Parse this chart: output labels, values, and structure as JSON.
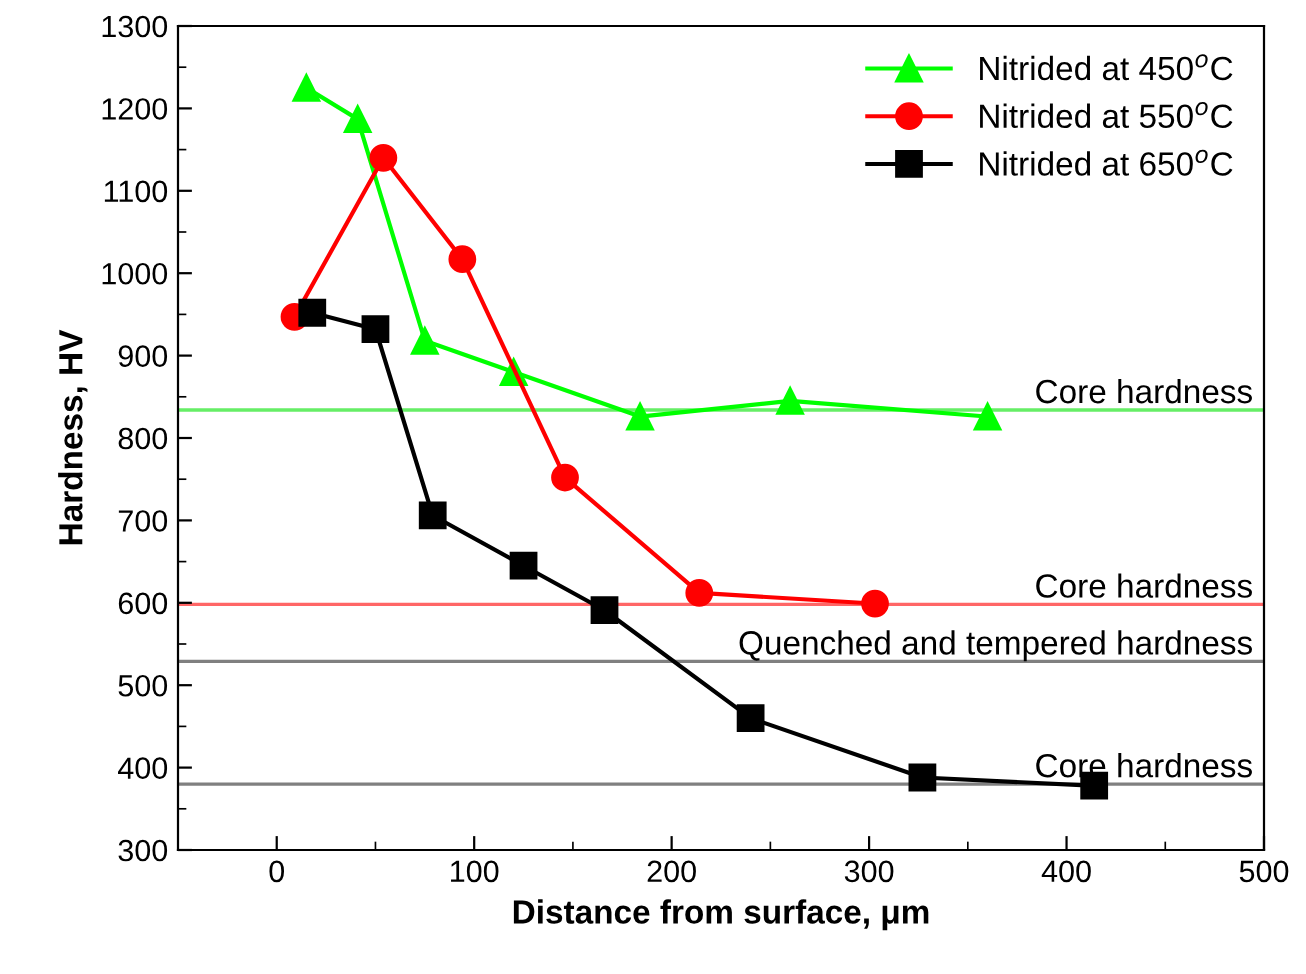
{
  "chart_data": {
    "type": "line",
    "xlabel": "Distance from surface, μm",
    "ylabel": "Hardness, HV",
    "xlim": [
      -50,
      500
    ],
    "xticks": [
      0,
      100,
      200,
      300,
      400,
      500
    ],
    "ylim": [
      300,
      1300
    ],
    "yticks": [
      300,
      400,
      500,
      600,
      700,
      800,
      900,
      1000,
      1100,
      1200,
      1300
    ],
    "series": [
      {
        "name": "Nitrided at 450$^{o}$C",
        "color": "#00ff00",
        "marker": "triangle",
        "x": [
          15,
          41,
          75,
          120,
          184,
          260,
          360
        ],
        "values": [
          1225,
          1187,
          918,
          880,
          826,
          845,
          826
        ]
      },
      {
        "name": "Nitrided at 550$^{o}$C",
        "color": "#ff0000",
        "marker": "circle",
        "x": [
          9,
          54,
          94,
          146,
          214,
          303
        ],
        "values": [
          947,
          1140,
          1017,
          752,
          612,
          599
        ]
      },
      {
        "name": "Nitrided at 650$^{o}$C",
        "color": "#000000",
        "marker": "square",
        "x": [
          18,
          50,
          79,
          125,
          166,
          240,
          327,
          414
        ],
        "values": [
          952,
          932,
          706,
          645,
          591,
          460,
          388,
          378
        ]
      }
    ],
    "ref_lines": [
      {
        "axis": "y",
        "value": 834,
        "label": "Core hardness",
        "color": "#66ee66"
      },
      {
        "axis": "y",
        "value": 598,
        "label": "Core hardness",
        "color": "#ff6666"
      },
      {
        "axis": "y",
        "value": 529,
        "label": "Quenched and tempered hardness",
        "color": "#808080"
      },
      {
        "axis": "y",
        "value": 380,
        "label": "Core hardness",
        "color": "#808080"
      }
    ],
    "legend": "top right",
    "grid": false
  }
}
